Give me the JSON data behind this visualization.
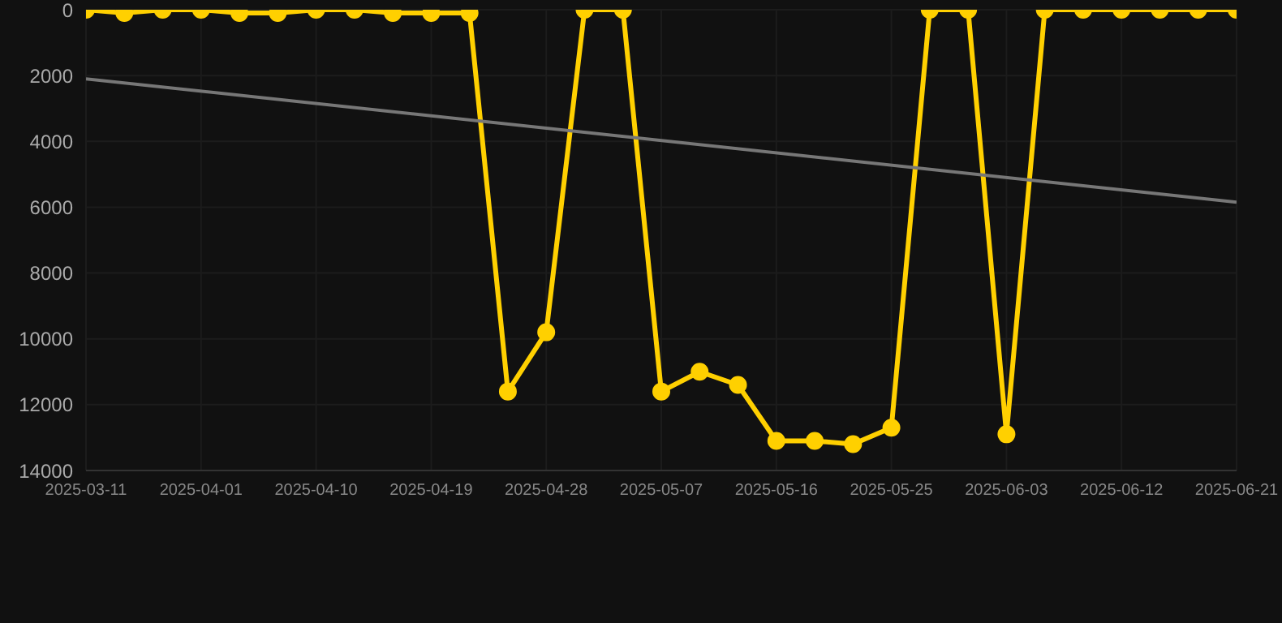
{
  "chart_data": {
    "type": "line",
    "categories": [
      "2025-03-11",
      null,
      null,
      "2025-04-01",
      null,
      null,
      "2025-04-10",
      null,
      null,
      "2025-04-19",
      null,
      null,
      "2025-04-28",
      null,
      null,
      "2025-05-07",
      null,
      null,
      "2025-05-16",
      null,
      null,
      "2025-05-25",
      null,
      null,
      "2025-06-03",
      null,
      null,
      "2025-06-12",
      null,
      null,
      "2025-06-21"
    ],
    "series": [
      {
        "color": "#ffd000",
        "marker": "circle",
        "values": [
          0,
          100,
          0,
          0,
          100,
          100,
          0,
          0,
          100,
          100,
          100,
          11600,
          9800,
          0,
          0,
          11600,
          11000,
          11400,
          13100,
          13100,
          13200,
          12700,
          0,
          0,
          12900,
          0,
          0,
          0,
          0,
          0,
          0
        ]
      },
      {
        "color": "#777777",
        "marker": "none",
        "values": [
          2100,
          null,
          null,
          null,
          null,
          null,
          null,
          null,
          null,
          null,
          null,
          null,
          null,
          null,
          null,
          null,
          null,
          null,
          null,
          null,
          null,
          null,
          null,
          null,
          null,
          null,
          null,
          null,
          null,
          null,
          5850
        ]
      }
    ],
    "ylim": [
      14000,
      0
    ],
    "yticks": [
      0,
      2000,
      4000,
      6000,
      8000,
      10000,
      12000,
      14000
    ],
    "grid": true
  }
}
